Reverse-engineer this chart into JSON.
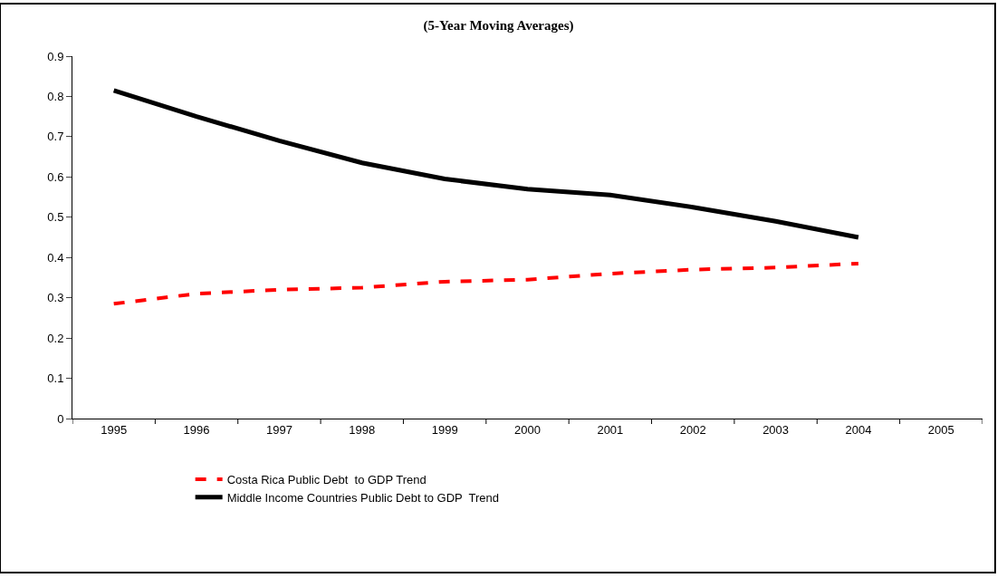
{
  "chart_data": {
    "type": "line",
    "title": "(5-Year Moving Averages)",
    "categories": [
      "1995",
      "1996",
      "1997",
      "1998",
      "1999",
      "2000",
      "2001",
      "2002",
      "2003",
      "2004",
      "2005"
    ],
    "series": [
      {
        "name": "Costa Rica Public Debt  to GDP Trend",
        "color": "#ff0000",
        "line_style": "dashed",
        "values": [
          0.285,
          0.31,
          0.32,
          0.325,
          0.34,
          0.345,
          0.36,
          0.37,
          0.375,
          0.385,
          null
        ]
      },
      {
        "name": "Middle Income Countries Public Debt to GDP  Trend",
        "color": "#000000",
        "line_style": "solid",
        "values": [
          0.815,
          0.75,
          0.69,
          0.635,
          0.595,
          0.57,
          0.555,
          0.525,
          0.49,
          0.45,
          null
        ]
      }
    ],
    "ylim": [
      0,
      0.9
    ],
    "yticks": [
      0,
      0.1,
      0.2,
      0.3,
      0.4,
      0.5,
      0.6,
      0.7,
      0.8,
      0.9
    ],
    "legend": "bottom",
    "marker": "none"
  }
}
